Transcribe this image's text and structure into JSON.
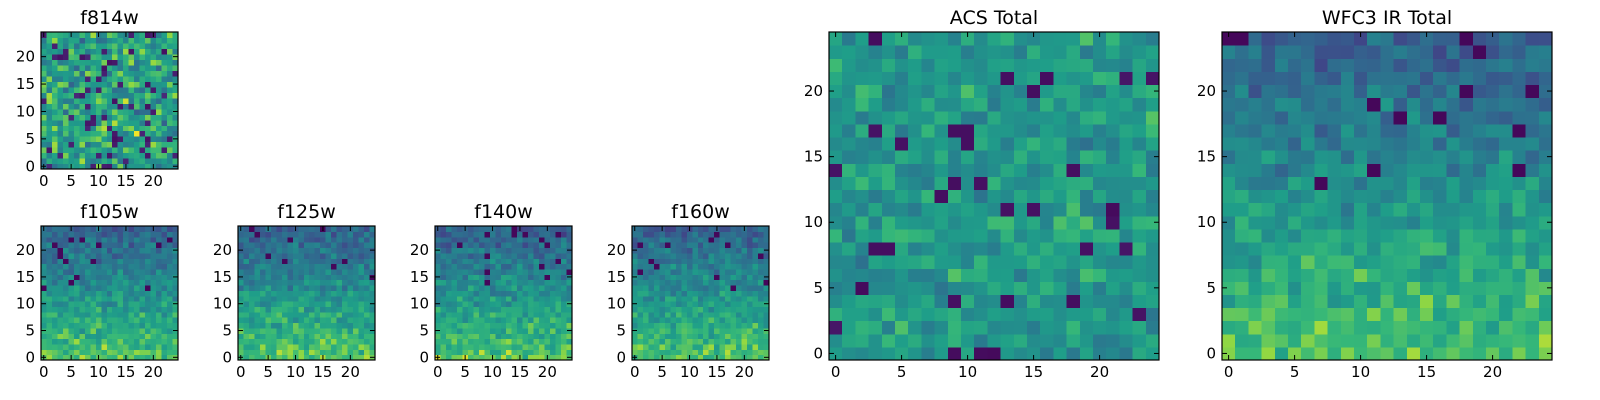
{
  "chart_data": [
    {
      "id": "f814w",
      "type": "heatmap",
      "title": "f814w",
      "nx": 25,
      "ny": 25,
      "xlim": [
        0,
        24
      ],
      "ylim": [
        0,
        24
      ],
      "xticks": [
        0,
        5,
        10,
        15,
        20
      ],
      "yticks": [
        0,
        5,
        10,
        15,
        20
      ],
      "colormap": "viridis",
      "seed": 11,
      "pattern": "noise"
    },
    {
      "id": "f105w",
      "type": "heatmap",
      "title": "f105w",
      "nx": 25,
      "ny": 25,
      "xlim": [
        0,
        24
      ],
      "ylim": [
        0,
        24
      ],
      "xticks": [
        0,
        5,
        10,
        15,
        20
      ],
      "yticks": [
        0,
        5,
        10,
        15,
        20
      ],
      "colormap": "viridis",
      "seed": 23,
      "pattern": "bright-bottom"
    },
    {
      "id": "f125w",
      "type": "heatmap",
      "title": "f125w",
      "nx": 25,
      "ny": 25,
      "xlim": [
        0,
        24
      ],
      "ylim": [
        0,
        24
      ],
      "xticks": [
        0,
        5,
        10,
        15,
        20
      ],
      "yticks": [
        0,
        5,
        10,
        15,
        20
      ],
      "colormap": "viridis",
      "seed": 37,
      "pattern": "bright-bottom"
    },
    {
      "id": "f140w",
      "type": "heatmap",
      "title": "f140w",
      "nx": 25,
      "ny": 25,
      "xlim": [
        0,
        24
      ],
      "ylim": [
        0,
        24
      ],
      "xticks": [
        0,
        5,
        10,
        15,
        20
      ],
      "yticks": [
        0,
        5,
        10,
        15,
        20
      ],
      "colormap": "viridis",
      "seed": 41,
      "pattern": "bright-bottom"
    },
    {
      "id": "f160w",
      "type": "heatmap",
      "title": "f160w",
      "nx": 25,
      "ny": 25,
      "xlim": [
        0,
        24
      ],
      "ylim": [
        0,
        24
      ],
      "xticks": [
        0,
        5,
        10,
        15,
        20
      ],
      "yticks": [
        0,
        5,
        10,
        15,
        20
      ],
      "colormap": "viridis",
      "seed": 53,
      "pattern": "bright-bottom"
    },
    {
      "id": "acs-total",
      "type": "heatmap",
      "title": "ACS Total",
      "nx": 25,
      "ny": 25,
      "xlim": [
        0,
        24
      ],
      "ylim": [
        0,
        24
      ],
      "xticks": [
        0,
        5,
        10,
        15,
        20
      ],
      "yticks": [
        0,
        5,
        10,
        15,
        20
      ],
      "colormap": "viridis",
      "seed": 67,
      "pattern": "mostly-bright"
    },
    {
      "id": "wfc3-ir-total",
      "type": "heatmap",
      "title": "WFC3 IR Total",
      "nx": 25,
      "ny": 25,
      "xlim": [
        0,
        24
      ],
      "ylim": [
        0,
        24
      ],
      "xticks": [
        0,
        5,
        10,
        15,
        20
      ],
      "yticks": [
        0,
        5,
        10,
        15,
        20
      ],
      "colormap": "viridis",
      "seed": 79,
      "pattern": "bright-bottom"
    }
  ]
}
